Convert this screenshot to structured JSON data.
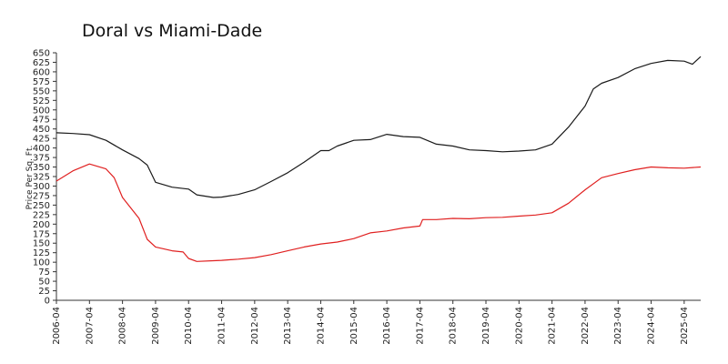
{
  "chart_data": {
    "type": "line",
    "title": "Doral vs Miami-Dade",
    "xlabel": "",
    "ylabel": "Price Per Sq. Ft.",
    "ylim": [
      0,
      650
    ],
    "yticks": [
      0,
      25,
      50,
      75,
      100,
      125,
      150,
      175,
      200,
      225,
      250,
      275,
      300,
      325,
      350,
      375,
      400,
      425,
      450,
      475,
      500,
      525,
      550,
      575,
      600,
      625,
      650
    ],
    "x_start": "2006-04",
    "x_end": "2025-10",
    "xticks": [
      "2006-04",
      "2007-04",
      "2008-04",
      "2009-04",
      "2010-04",
      "2011-04",
      "2012-04",
      "2013-04",
      "2014-04",
      "2015-04",
      "2016-04",
      "2017-04",
      "2018-04",
      "2019-04",
      "2020-04",
      "2021-04",
      "2022-04",
      "2023-04",
      "2024-04",
      "2025-04"
    ],
    "grid": false,
    "legend": "none",
    "series": [
      {
        "name": "Miami-Dade",
        "color": "#1a1a1a",
        "points": [
          [
            "2006-04",
            440
          ],
          [
            "2006-10",
            438
          ],
          [
            "2007-04",
            435
          ],
          [
            "2007-10",
            420
          ],
          [
            "2008-04",
            395
          ],
          [
            "2008-10",
            372
          ],
          [
            "2009-01",
            355
          ],
          [
            "2009-04",
            310
          ],
          [
            "2009-10",
            297
          ],
          [
            "2010-04",
            292
          ],
          [
            "2010-07",
            277
          ],
          [
            "2011-01",
            270
          ],
          [
            "2011-04",
            271
          ],
          [
            "2011-10",
            278
          ],
          [
            "2012-04",
            290
          ],
          [
            "2012-10",
            312
          ],
          [
            "2013-04",
            335
          ],
          [
            "2013-10",
            363
          ],
          [
            "2014-04",
            393
          ],
          [
            "2014-07",
            393
          ],
          [
            "2014-10",
            405
          ],
          [
            "2015-04",
            420
          ],
          [
            "2015-10",
            422
          ],
          [
            "2016-04",
            436
          ],
          [
            "2016-10",
            430
          ],
          [
            "2017-04",
            428
          ],
          [
            "2017-10",
            410
          ],
          [
            "2018-04",
            405
          ],
          [
            "2018-10",
            395
          ],
          [
            "2019-04",
            393
          ],
          [
            "2019-10",
            390
          ],
          [
            "2020-04",
            392
          ],
          [
            "2020-10",
            395
          ],
          [
            "2021-04",
            410
          ],
          [
            "2021-10",
            455
          ],
          [
            "2022-04",
            510
          ],
          [
            "2022-07",
            555
          ],
          [
            "2022-10",
            570
          ],
          [
            "2023-04",
            585
          ],
          [
            "2023-10",
            608
          ],
          [
            "2024-04",
            622
          ],
          [
            "2024-10",
            630
          ],
          [
            "2025-04",
            628
          ],
          [
            "2025-07",
            620
          ],
          [
            "2025-10",
            640
          ]
        ]
      },
      {
        "name": "Doral",
        "color": "#e02020",
        "points": [
          [
            "2006-04",
            313
          ],
          [
            "2006-10",
            340
          ],
          [
            "2007-04",
            358
          ],
          [
            "2007-10",
            345
          ],
          [
            "2008-01",
            322
          ],
          [
            "2008-04",
            270
          ],
          [
            "2008-10",
            215
          ],
          [
            "2009-01",
            160
          ],
          [
            "2009-04",
            140
          ],
          [
            "2009-10",
            130
          ],
          [
            "2010-02",
            127
          ],
          [
            "2010-04",
            110
          ],
          [
            "2010-07",
            102
          ],
          [
            "2011-01",
            104
          ],
          [
            "2011-04",
            105
          ],
          [
            "2011-10",
            108
          ],
          [
            "2012-04",
            112
          ],
          [
            "2012-10",
            120
          ],
          [
            "2013-04",
            130
          ],
          [
            "2013-10",
            140
          ],
          [
            "2014-04",
            148
          ],
          [
            "2014-10",
            153
          ],
          [
            "2015-04",
            162
          ],
          [
            "2015-10",
            177
          ],
          [
            "2016-04",
            182
          ],
          [
            "2016-10",
            190
          ],
          [
            "2017-04",
            195
          ],
          [
            "2017-05",
            212
          ],
          [
            "2017-10",
            212
          ],
          [
            "2018-04",
            215
          ],
          [
            "2018-10",
            214
          ],
          [
            "2019-04",
            217
          ],
          [
            "2019-10",
            218
          ],
          [
            "2020-04",
            221
          ],
          [
            "2020-10",
            224
          ],
          [
            "2021-04",
            230
          ],
          [
            "2021-10",
            255
          ],
          [
            "2022-04",
            290
          ],
          [
            "2022-10",
            322
          ],
          [
            "2023-04",
            333
          ],
          [
            "2023-10",
            343
          ],
          [
            "2024-04",
            350
          ],
          [
            "2024-10",
            348
          ],
          [
            "2025-04",
            347
          ],
          [
            "2025-10",
            350
          ]
        ]
      }
    ]
  }
}
